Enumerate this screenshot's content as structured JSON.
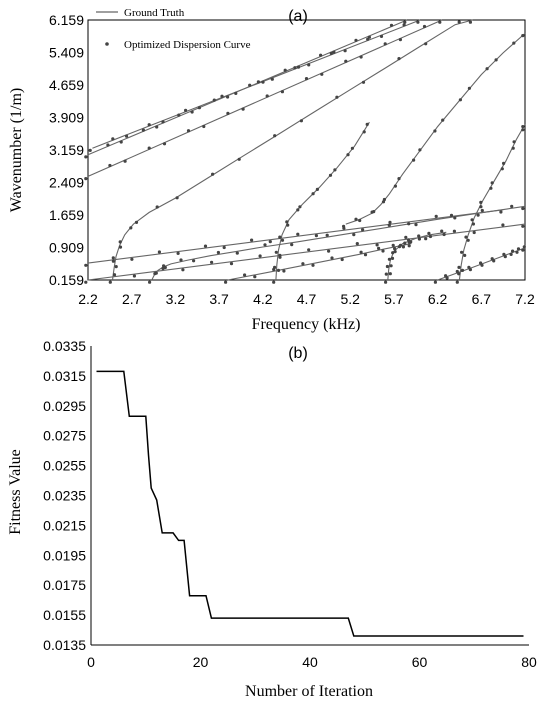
{
  "chart_data": [
    {
      "type": "line",
      "panel_label": "(a)",
      "xlabel": "Frequency (kHz)",
      "ylabel": "Wavenumber  (1/m)",
      "xlim": [
        2.2,
        7.2
      ],
      "ylim": [
        0.159,
        6.159
      ],
      "xticks": [
        "2.2",
        "2.7",
        "3.2",
        "3.7",
        "4.2",
        "4.7",
        "5.2",
        "5.7",
        "6.2",
        "6.7",
        "7.2"
      ],
      "yticks": [
        "0.159",
        "0.909",
        "1.659",
        "2.409",
        "3.159",
        "3.909",
        "4.659",
        "5.409",
        "6.159"
      ],
      "legend": [
        "Ground Truth",
        "Optimized Dispersion Curve"
      ],
      "legend_position": "top-left",
      "grid": false,
      "series": [
        {
          "x": [
            2.2,
            5.85
          ],
          "y": [
            3.05,
            6.159
          ]
        },
        {
          "x": [
            2.25,
            6.0
          ],
          "y": [
            3.2,
            6.159
          ]
        },
        {
          "x": [
            2.2,
            6.25
          ],
          "y": [
            2.55,
            6.159
          ]
        },
        {
          "x": [
            2.2,
            6.95
          ],
          "y": [
            0.55,
            1.78
          ]
        },
        {
          "x": [
            2.2,
            7.2
          ],
          "y": [
            0.159,
            1.45
          ]
        },
        {
          "x": [
            2.48,
            2.5,
            2.52,
            2.56,
            2.62,
            2.72,
            2.9,
            3.2,
            3.6,
            4.0,
            4.4,
            4.8,
            5.2,
            5.6,
            6.0,
            6.4,
            6.6
          ],
          "y": [
            0.159,
            0.45,
            0.7,
            0.95,
            1.2,
            1.45,
            1.72,
            2.05,
            2.55,
            3.05,
            3.55,
            4.05,
            4.55,
            5.05,
            5.55,
            6.05,
            6.159
          ]
        },
        {
          "x": [
            2.93,
            2.96,
            3.0,
            3.06,
            3.15,
            3.35,
            3.6,
            3.9,
            4.2,
            4.6,
            5.0,
            5.4,
            5.8,
            6.2,
            6.6,
            7.0,
            7.2
          ],
          "y": [
            0.159,
            0.28,
            0.38,
            0.46,
            0.53,
            0.62,
            0.72,
            0.82,
            0.92,
            1.04,
            1.17,
            1.3,
            1.43,
            1.56,
            1.68,
            1.8,
            1.86
          ]
        },
        {
          "x": [
            3.8,
            4.3,
            4.8,
            5.3,
            5.6,
            5.8,
            5.9
          ],
          "y": [
            0.159,
            0.35,
            0.55,
            0.75,
            0.88,
            0.96,
            1.0
          ]
        },
        {
          "x": [
            4.35,
            4.36,
            4.38,
            4.42,
            4.5,
            4.65,
            4.85,
            5.05,
            5.25,
            5.42
          ],
          "y": [
            0.159,
            0.5,
            0.85,
            1.2,
            1.55,
            1.9,
            2.3,
            2.75,
            3.25,
            3.8
          ]
        },
        {
          "x": [
            5.15,
            5.3,
            5.45,
            5.55,
            5.65,
            5.8,
            6.0,
            6.2,
            6.45,
            6.7,
            6.95,
            7.2
          ],
          "y": [
            1.45,
            1.55,
            1.7,
            1.9,
            2.15,
            2.6,
            3.15,
            3.7,
            4.3,
            4.9,
            5.4,
            5.85
          ]
        },
        {
          "x": [
            5.63,
            5.64,
            5.66,
            5.7,
            5.8,
            5.95,
            6.1,
            6.3
          ],
          "y": [
            0.159,
            0.4,
            0.62,
            0.82,
            1.0,
            1.12,
            1.2,
            1.26
          ]
        },
        {
          "x": [
            6.2,
            6.6,
            7.0,
            7.2
          ],
          "y": [
            0.159,
            0.45,
            0.75,
            0.9
          ]
        },
        {
          "x": [
            6.45,
            6.47,
            6.5,
            6.55,
            6.62,
            6.72,
            6.85,
            6.98,
            7.1,
            7.2
          ],
          "y": [
            0.159,
            0.5,
            0.85,
            1.2,
            1.6,
            2.0,
            2.45,
            2.9,
            3.4,
            3.75
          ]
        }
      ]
    },
    {
      "type": "line",
      "panel_label": "(b)",
      "xlabel": "Number of Iteration",
      "ylabel": "Fitness Value",
      "xlim": [
        0,
        80
      ],
      "ylim": [
        0.0135,
        0.0335
      ],
      "xticks": [
        "0",
        "20",
        "40",
        "60",
        "80"
      ],
      "yticks": [
        "0.0135",
        "0.0155",
        "0.0175",
        "0.0195",
        "0.0215",
        "0.0235",
        "0.0255",
        "0.0275",
        "0.0295",
        "0.0315",
        "0.0335"
      ],
      "grid": false,
      "series": [
        {
          "x": [
            1,
            6,
            7,
            10,
            10.5,
            11,
            12,
            13,
            15,
            16,
            17,
            18,
            19,
            21,
            22,
            47,
            48,
            79
          ],
          "y": [
            0.0318,
            0.0318,
            0.0288,
            0.0288,
            0.0262,
            0.024,
            0.0232,
            0.021,
            0.021,
            0.0205,
            0.0205,
            0.0168,
            0.0168,
            0.0168,
            0.0153,
            0.0153,
            0.0141,
            0.0141
          ]
        }
      ]
    }
  ]
}
